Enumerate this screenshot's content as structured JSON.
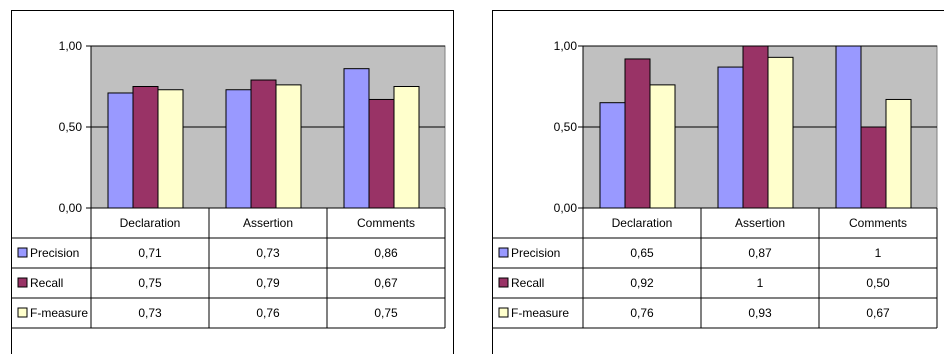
{
  "chart_data": [
    {
      "type": "bar",
      "categories": [
        "Declaration",
        "Assertion",
        "Comments"
      ],
      "series": [
        {
          "name": "Precision",
          "values": [
            0.71,
            0.73,
            0.86
          ],
          "labels": [
            "0,71",
            "0,73",
            "0,86"
          ],
          "color": "#9999ff"
        },
        {
          "name": "Recall",
          "values": [
            0.75,
            0.79,
            0.67
          ],
          "labels": [
            "0,75",
            "0,79",
            "0,67"
          ],
          "color": "#993366"
        },
        {
          "name": "F-measure",
          "values": [
            0.73,
            0.76,
            0.75
          ],
          "labels": [
            "0,73",
            "0,76",
            "0,75"
          ],
          "color": "#ffffcc"
        }
      ],
      "ylim": [
        0,
        1
      ],
      "yticks": [
        {
          "value": 0,
          "label": "0,00"
        },
        {
          "value": 0.5,
          "label": "0,50"
        },
        {
          "value": 1,
          "label": "1,00"
        }
      ],
      "plot_background": "#c0c0c0",
      "grid": true,
      "legend": "data-table"
    },
    {
      "type": "bar",
      "categories": [
        "Declaration",
        "Assertion",
        "Comments"
      ],
      "series": [
        {
          "name": "Precision",
          "values": [
            0.65,
            0.87,
            1
          ],
          "labels": [
            "0,65",
            "0,87",
            "1"
          ],
          "color": "#9999ff"
        },
        {
          "name": "Recall",
          "values": [
            0.92,
            1,
            0.5
          ],
          "labels": [
            "0,92",
            "1",
            "0,50"
          ],
          "color": "#993366"
        },
        {
          "name": "F-measure",
          "values": [
            0.76,
            0.93,
            0.67
          ],
          "labels": [
            "0,76",
            "0,93",
            "0,67"
          ],
          "color": "#ffffcc"
        }
      ],
      "ylim": [
        0,
        1
      ],
      "yticks": [
        {
          "value": 0,
          "label": "0,00"
        },
        {
          "value": 0.5,
          "label": "0,50"
        },
        {
          "value": 1,
          "label": "1,00"
        }
      ],
      "plot_background": "#c0c0c0",
      "grid": true,
      "legend": "data-table"
    }
  ]
}
